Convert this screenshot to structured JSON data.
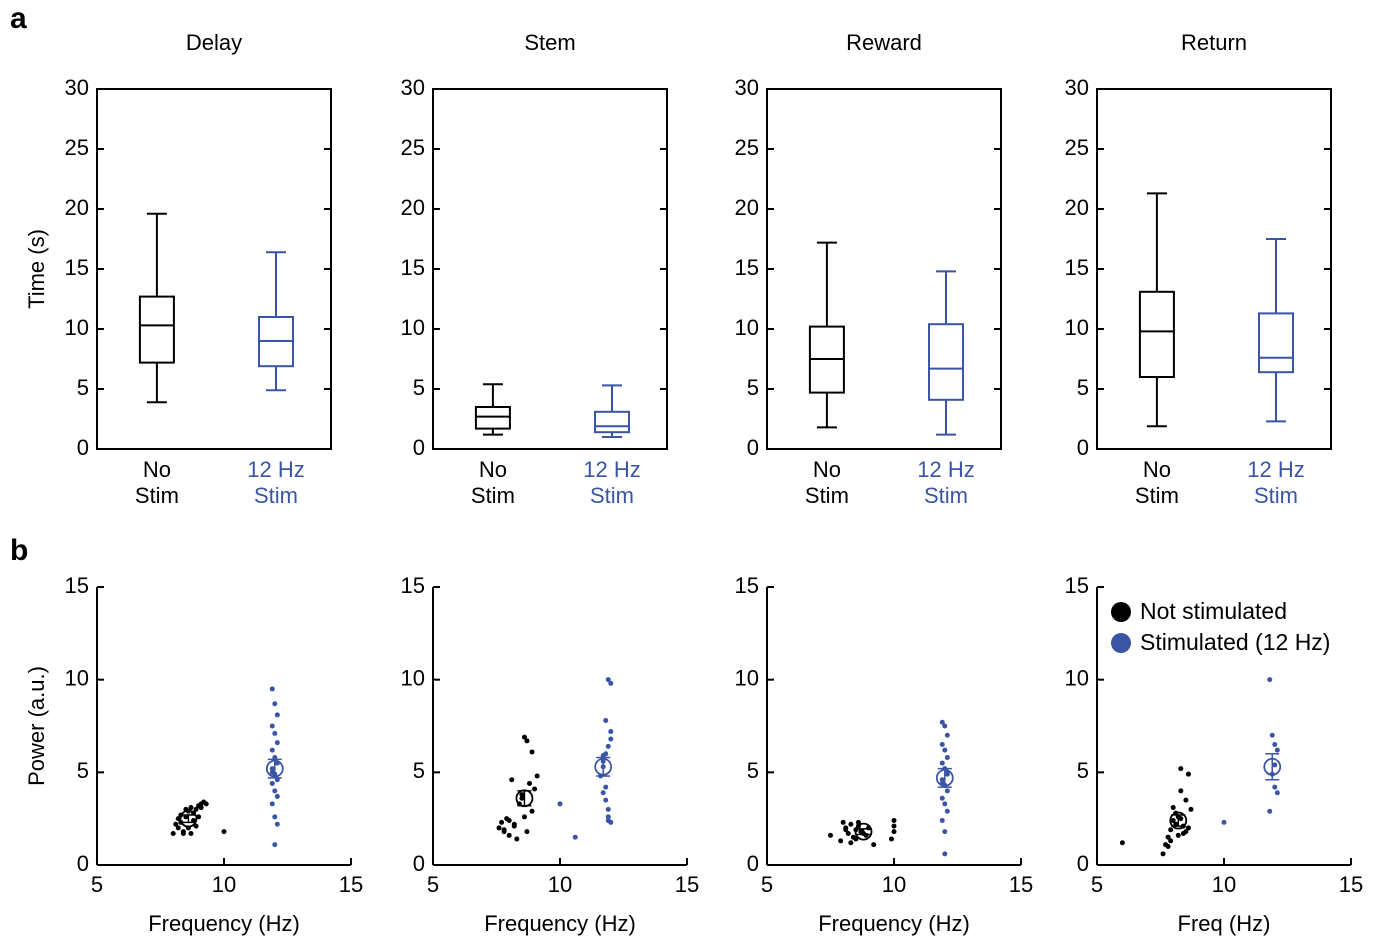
{
  "panel_labels": [
    "a",
    "b"
  ],
  "chart_data": [
    {
      "type": "box",
      "title": "Delay",
      "ylabel": "Time (s)",
      "categories": [
        "No Stim",
        "12 Hz Stim"
      ],
      "ylim": [
        0,
        30
      ],
      "yticks": [
        0,
        5,
        10,
        15,
        20,
        25,
        30
      ],
      "boxes": [
        {
          "color": "#000000",
          "whisker_low": 3.9,
          "q1": 7.2,
          "median": 10.3,
          "q3": 12.7,
          "whisker_high": 19.6
        },
        {
          "color": "#3a55a4",
          "whisker_low": 4.9,
          "q1": 6.9,
          "median": 9.0,
          "q3": 11.0,
          "whisker_high": 16.4
        }
      ]
    },
    {
      "type": "box",
      "title": "Stem",
      "categories": [
        "No Stim",
        "12 Hz Stim"
      ],
      "ylim": [
        0,
        30
      ],
      "yticks": [
        0,
        5,
        10,
        15,
        20,
        25,
        30
      ],
      "boxes": [
        {
          "color": "#000000",
          "whisker_low": 1.2,
          "q1": 1.7,
          "median": 2.7,
          "q3": 3.5,
          "whisker_high": 5.4
        },
        {
          "color": "#3a55a4",
          "whisker_low": 1.0,
          "q1": 1.4,
          "median": 1.9,
          "q3": 3.1,
          "whisker_high": 5.3
        }
      ]
    },
    {
      "type": "box",
      "title": "Reward",
      "categories": [
        "No Stim",
        "12 Hz Stim"
      ],
      "ylim": [
        0,
        30
      ],
      "yticks": [
        0,
        5,
        10,
        15,
        20,
        25,
        30
      ],
      "boxes": [
        {
          "color": "#000000",
          "whisker_low": 1.8,
          "q1": 4.7,
          "median": 7.5,
          "q3": 10.2,
          "whisker_high": 17.2
        },
        {
          "color": "#3a55a4",
          "whisker_low": 1.2,
          "q1": 4.1,
          "median": 6.7,
          "q3": 10.4,
          "whisker_high": 14.8
        }
      ]
    },
    {
      "type": "box",
      "title": "Return",
      "categories": [
        "No Stim",
        "12 Hz Stim"
      ],
      "ylim": [
        0,
        30
      ],
      "yticks": [
        0,
        5,
        10,
        15,
        20,
        25,
        30
      ],
      "boxes": [
        {
          "color": "#000000",
          "whisker_low": 1.9,
          "q1": 6.0,
          "median": 9.8,
          "q3": 13.1,
          "whisker_high": 21.3
        },
        {
          "color": "#3a55a4",
          "whisker_low": 2.3,
          "q1": 6.4,
          "median": 7.6,
          "q3": 11.3,
          "whisker_high": 17.5
        }
      ]
    },
    {
      "type": "scatter",
      "xlabel": "Frequency (Hz)",
      "ylabel": "Power (a.u.)",
      "xlim": [
        5,
        15
      ],
      "xticks": [
        5,
        10,
        15
      ],
      "ylim": [
        0,
        15
      ],
      "yticks": [
        0,
        5,
        10,
        15
      ],
      "series": [
        {
          "color": "#000000",
          "x": [
            8.0,
            8.2,
            8.3,
            8.4,
            8.5,
            8.6,
            8.7,
            8.8,
            8.9,
            9.0,
            9.1,
            9.2,
            9.3,
            8.1,
            8.4,
            8.6,
            8.8,
            9.0,
            8.3,
            8.7,
            10.0,
            8.5,
            8.9,
            9.1,
            8.2
          ],
          "y": [
            1.7,
            2.0,
            2.3,
            1.8,
            2.6,
            2.9,
            3.1,
            2.4,
            3.0,
            3.2,
            3.3,
            3.4,
            3.3,
            2.2,
            1.7,
            2.0,
            2.8,
            2.6,
            2.7,
            1.7,
            1.8,
            3.0,
            2.1,
            3.1,
            2.5
          ],
          "mean_x": 8.6,
          "mean_y": 2.5,
          "sem": 0.2
        },
        {
          "color": "#3a55a4",
          "x": [
            11.9,
            12.0,
            12.1,
            11.9,
            12.0,
            12.1,
            11.9,
            12.0,
            12.1,
            11.9,
            12.0,
            12.1,
            11.9,
            12.0,
            12.1,
            11.9,
            12.0,
            12.1,
            12.0,
            11.9
          ],
          "y": [
            9.5,
            8.7,
            8.1,
            7.5,
            7.1,
            6.6,
            6.2,
            5.8,
            5.5,
            5.2,
            4.9,
            4.6,
            4.4,
            4.0,
            3.7,
            3.3,
            2.6,
            2.2,
            1.1,
            5.0
          ],
          "mean_x": 12.0,
          "mean_y": 5.2,
          "sem": 0.5
        }
      ]
    },
    {
      "type": "scatter",
      "xlabel": "Frequency (Hz)",
      "xlim": [
        5,
        15
      ],
      "xticks": [
        5,
        10,
        15
      ],
      "ylim": [
        0,
        15
      ],
      "yticks": [
        0,
        5,
        10,
        15
      ],
      "series": [
        {
          "color": "#000000",
          "x": [
            7.6,
            7.7,
            7.8,
            7.9,
            8.0,
            8.1,
            8.2,
            8.3,
            8.4,
            8.5,
            8.6,
            8.7,
            8.8,
            8.9,
            9.0,
            9.1,
            8.6,
            8.7,
            8.2,
            8.5,
            8.9,
            7.8,
            8.0
          ],
          "y": [
            2.0,
            2.3,
            1.8,
            2.5,
            1.6,
            4.6,
            2.2,
            1.4,
            3.3,
            3.8,
            6.9,
            6.7,
            4.4,
            6.1,
            4.1,
            4.8,
            2.6,
            1.8,
            2.1,
            3.6,
            2.9,
            1.9,
            2.4
          ],
          "mean_x": 8.6,
          "mean_y": 3.6,
          "sem": 0.4
        },
        {
          "color": "#3a55a4",
          "x": [
            10.0,
            10.6,
            11.6,
            11.7,
            11.8,
            11.9,
            12.0,
            11.7,
            11.8,
            11.9,
            12.0,
            11.8,
            11.7,
            11.9,
            12.0,
            11.8,
            11.9,
            11.7,
            12.0,
            11.9
          ],
          "y": [
            3.3,
            1.5,
            4.8,
            3.9,
            3.5,
            2.4,
            2.3,
            5.6,
            6.0,
            6.4,
            7.2,
            7.8,
            5.3,
            10.0,
            9.8,
            4.2,
            3.0,
            5.9,
            6.8,
            2.6
          ],
          "mean_x": 11.7,
          "mean_y": 5.3,
          "sem": 0.5
        }
      ]
    },
    {
      "type": "scatter",
      "xlabel": "Frequency (Hz)",
      "xlim": [
        5,
        15
      ],
      "xticks": [
        5,
        10,
        15
      ],
      "ylim": [
        0,
        15
      ],
      "yticks": [
        0,
        5,
        10,
        15
      ],
      "series": [
        {
          "color": "#000000",
          "x": [
            7.5,
            7.9,
            8.0,
            8.1,
            8.2,
            8.3,
            8.4,
            8.5,
            8.6,
            8.7,
            8.8,
            8.9,
            9.0,
            9.2,
            9.9,
            10.0,
            10.0,
            10.0,
            8.3,
            8.6,
            8.1,
            8.5
          ],
          "y": [
            1.6,
            1.3,
            2.3,
            2.0,
            1.7,
            2.2,
            1.5,
            1.9,
            2.1,
            1.8,
            1.7,
            1.6,
            2.0,
            1.1,
            1.4,
            1.8,
            2.1,
            2.4,
            1.2,
            2.3,
            1.9,
            1.4
          ],
          "mean_x": 8.8,
          "mean_y": 1.8,
          "sem": 0.15
        },
        {
          "color": "#3a55a4",
          "x": [
            11.9,
            12.0,
            12.1,
            11.9,
            12.0,
            12.1,
            11.9,
            12.0,
            12.1,
            11.9,
            12.0,
            12.1,
            11.9,
            12.0,
            12.1,
            11.9,
            12.0,
            12.0,
            12.1,
            11.9
          ],
          "y": [
            7.7,
            7.5,
            7.0,
            6.5,
            6.2,
            5.8,
            5.5,
            5.2,
            4.9,
            4.6,
            4.3,
            4.0,
            3.6,
            3.3,
            2.9,
            2.4,
            1.8,
            0.6,
            5.0,
            4.4
          ],
          "mean_x": 12.0,
          "mean_y": 4.7,
          "sem": 0.5
        }
      ]
    },
    {
      "type": "scatter",
      "xlabel": "Freq (Hz)",
      "xlim": [
        5,
        15
      ],
      "xticks": [
        5,
        10,
        15
      ],
      "ylim": [
        0,
        15
      ],
      "yticks": [
        0,
        5,
        10,
        15
      ],
      "legend": "upper right",
      "series": [
        {
          "name": "Not stimulated",
          "color": "#000000",
          "x": [
            6.0,
            7.6,
            7.7,
            7.8,
            7.9,
            8.0,
            8.1,
            8.2,
            8.3,
            8.4,
            8.5,
            8.6,
            8.7,
            7.9,
            8.1,
            8.3,
            8.5,
            8.2,
            8.0,
            8.4,
            8.6,
            7.8,
            8.3
          ],
          "y": [
            1.2,
            0.6,
            1.1,
            1.5,
            1.9,
            2.4,
            2.8,
            1.6,
            5.2,
            2.1,
            3.5,
            4.9,
            3.0,
            1.3,
            2.2,
            4.0,
            1.8,
            2.6,
            3.1,
            1.7,
            2.0,
            1.0,
            2.5
          ],
          "mean_x": 8.2,
          "mean_y": 2.4,
          "sem": 0.3
        },
        {
          "name": "Stimulated (12 Hz)",
          "color": "#3a55a4",
          "x": [
            10.0,
            11.8,
            11.9,
            12.0,
            12.1,
            11.9,
            12.0,
            12.1,
            11.8,
            12.0
          ],
          "y": [
            2.3,
            10.0,
            7.0,
            6.5,
            6.2,
            4.9,
            4.2,
            3.9,
            2.9,
            5.4
          ],
          "mean_x": 11.9,
          "mean_y": 5.3,
          "sem": 0.7
        }
      ]
    }
  ]
}
